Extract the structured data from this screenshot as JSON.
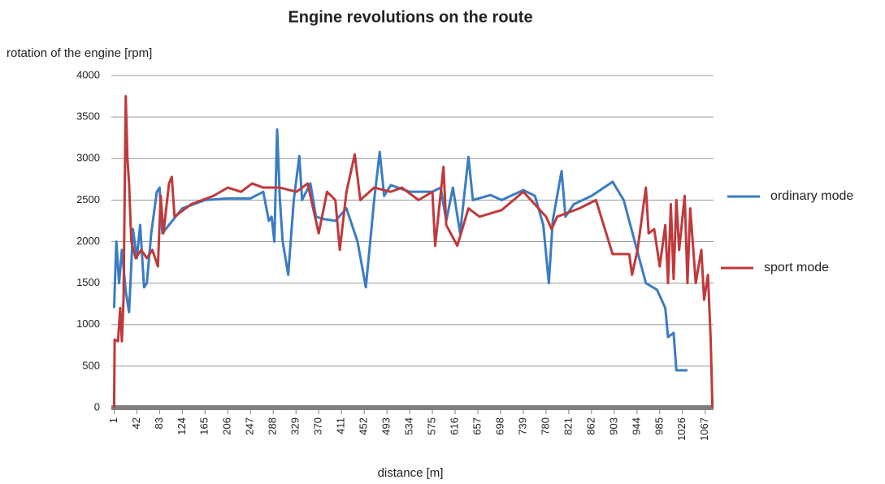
{
  "chart_data": {
    "type": "line",
    "title": "Engine revolutions on the route",
    "y_label": "rotation of the engine [rpm]",
    "x_label": "distance [m]",
    "xlim": [
      -4,
      1082
    ],
    "xticks": [
      1,
      42,
      83,
      124,
      165,
      206,
      247,
      288,
      329,
      370,
      411,
      452,
      493,
      534,
      575,
      616,
      657,
      698,
      739,
      780,
      821,
      862,
      903,
      944,
      985,
      1026,
      1067
    ],
    "ylim": [
      0,
      4000
    ],
    "yticks": [
      0,
      500,
      1000,
      1500,
      2000,
      2500,
      3000,
      3500,
      4000
    ],
    "grid": true,
    "legend": "right",
    "series": [
      {
        "name": "ordinary mode",
        "color": "#3a7cc4",
        "x": [
          1,
          5,
          10,
          15,
          22,
          28,
          35,
          42,
          48,
          55,
          60,
          68,
          78,
          83,
          88,
          100,
          124,
          165,
          206,
          247,
          270,
          280,
          285,
          290,
          295,
          300,
          305,
          315,
          325,
          335,
          340,
          355,
          365,
          380,
          400,
          420,
          440,
          455,
          470,
          480,
          488,
          500,
          534,
          575,
          590,
          600,
          612,
          625,
          640,
          648,
          680,
          700,
          739,
          760,
          775,
          785,
          792,
          808,
          815,
          830,
          862,
          900,
          920,
          940,
          960,
          980,
          995,
          1000,
          1010,
          1015,
          1035
        ],
        "values": [
          1200,
          2000,
          1500,
          1900,
          1400,
          1150,
          2150,
          1800,
          2200,
          1450,
          1500,
          2100,
          2600,
          2650,
          2100,
          2200,
          2400,
          2500,
          2520,
          2520,
          2600,
          2250,
          2300,
          2000,
          3350,
          2500,
          2000,
          1600,
          2500,
          3030,
          2500,
          2700,
          2300,
          2270,
          2250,
          2400,
          2000,
          1450,
          2500,
          3080,
          2550,
          2680,
          2600,
          2600,
          2650,
          2250,
          2650,
          2100,
          3020,
          2500,
          2560,
          2500,
          2620,
          2550,
          2200,
          1500,
          2250,
          2850,
          2300,
          2450,
          2550,
          2720,
          2500,
          2000,
          1500,
          1420,
          1200,
          850,
          900,
          450,
          450
        ]
      },
      {
        "name": "sport mode",
        "color": "#c0393b",
        "x": [
          1,
          2,
          8,
          12,
          15,
          18,
          22,
          25,
          28,
          32,
          40,
          50,
          60,
          70,
          80,
          85,
          90,
          100,
          105,
          110,
          140,
          180,
          206,
          230,
          250,
          270,
          300,
          330,
          350,
          370,
          385,
          400,
          408,
          420,
          435,
          445,
          470,
          500,
          520,
          550,
          575,
          580,
          595,
          600,
          620,
          640,
          660,
          700,
          739,
          780,
          790,
          800,
          840,
          870,
          900,
          930,
          935,
          945,
          960,
          965,
          975,
          985,
          995,
          1000,
          1005,
          1010,
          1015,
          1020,
          1030,
          1035,
          1040,
          1050,
          1060,
          1065,
          1072,
          1077,
          1080
        ],
        "values": [
          0,
          820,
          800,
          1200,
          800,
          1300,
          3750,
          3000,
          2700,
          2000,
          1800,
          1900,
          1800,
          1900,
          1700,
          2550,
          2100,
          2700,
          2780,
          2300,
          2450,
          2550,
          2650,
          2600,
          2700,
          2650,
          2650,
          2600,
          2700,
          2100,
          2600,
          2500,
          1900,
          2600,
          3050,
          2500,
          2650,
          2600,
          2650,
          2500,
          2600,
          1950,
          2900,
          2200,
          1950,
          2400,
          2300,
          2380,
          2600,
          2300,
          2150,
          2300,
          2400,
          2500,
          1850,
          1850,
          1600,
          1900,
          2650,
          2100,
          2150,
          1700,
          2200,
          1500,
          2450,
          1550,
          2500,
          1900,
          2550,
          1500,
          2400,
          1500,
          1900,
          1300,
          1600,
          800,
          0
        ]
      }
    ]
  }
}
